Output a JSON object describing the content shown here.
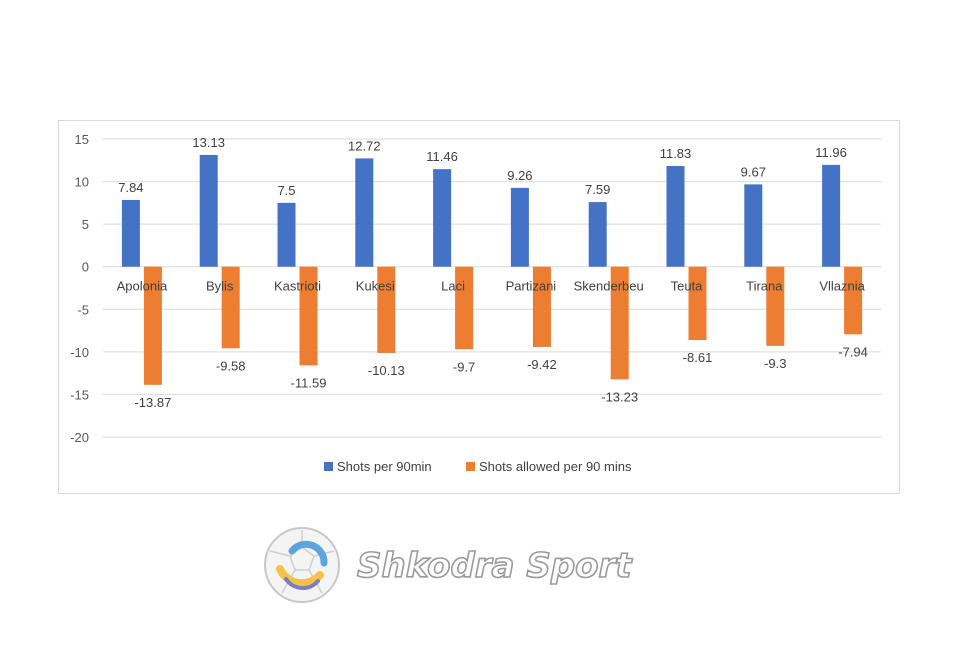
{
  "chart_data": {
    "type": "bar",
    "categories": [
      "Apolonia",
      "Bylis",
      "Kastrioti",
      "Kukesi",
      "Laci",
      "Partizani",
      "Skenderbeu",
      "Teuta",
      "Tirana",
      "Vllaznia"
    ],
    "series": [
      {
        "name": "Shots per 90min",
        "color": "#4472c4",
        "values": [
          7.84,
          13.13,
          7.5,
          12.72,
          11.46,
          9.26,
          7.59,
          11.83,
          9.67,
          11.96
        ],
        "labels": [
          "7.84",
          "13.13",
          "7.5",
          "12.72",
          "11.46",
          "9.26",
          "7.59",
          "11.83",
          "9.67",
          "11.96"
        ]
      },
      {
        "name": "Shots allowed per 90 mins",
        "color": "#ed7d31",
        "values": [
          -13.87,
          -9.58,
          -11.59,
          -10.13,
          -9.7,
          -9.42,
          -13.23,
          -8.61,
          -9.3,
          -7.94
        ],
        "labels": [
          "-13.87",
          "-9.58",
          "-11.59",
          "-10.13",
          "-9.7",
          "-9.42",
          "-13.23",
          "-8.61",
          "-9.3",
          "-7.94"
        ]
      }
    ],
    "yticks": [
      "15",
      "10",
      "5",
      "0",
      "-5",
      "-10",
      "-15",
      "-20"
    ],
    "ylim": [
      -20,
      15
    ],
    "grid": true,
    "legend_position": "bottom",
    "title": "",
    "xlabel": "",
    "ylabel": ""
  },
  "logo": {
    "text": "Shkodra Sport"
  }
}
